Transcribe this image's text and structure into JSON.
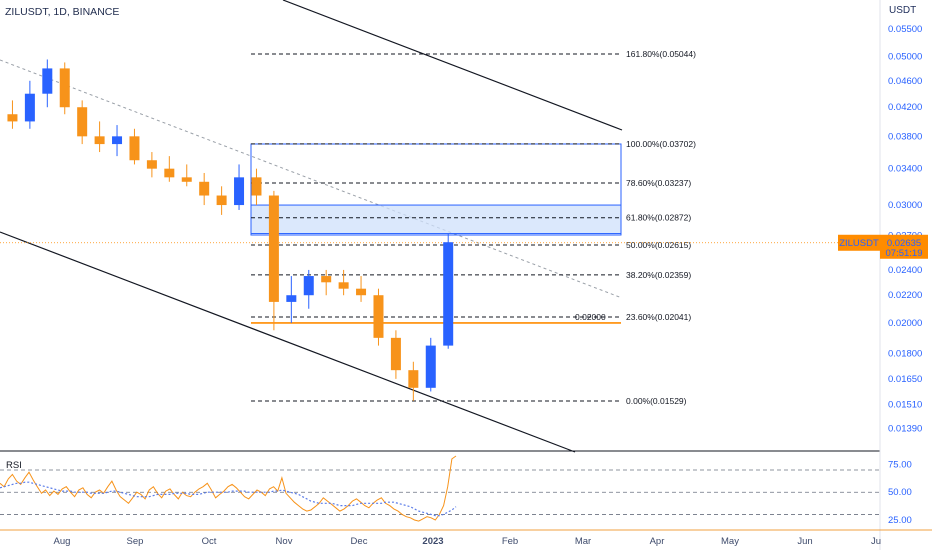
{
  "header": {
    "symbol_title": "ZILUSDT, 1D, BINANCE",
    "currency": "USDT"
  },
  "colors": {
    "up": "#2962ff",
    "down": "#f7931a",
    "level": "#ff8c00",
    "rsi": "#f7931a",
    "rsi_ma": "#5b7ce8",
    "zone": "#cfe0fb"
  },
  "price_label": {
    "symbol": "ZILUSDT",
    "price": "0.02635",
    "countdown": "07:51:19"
  },
  "level_label": "0.02000",
  "rsi_title": "RSI",
  "chart_data": [
    {
      "type": "candlestick",
      "title": "ZILUSDT, 1D, BINANCE",
      "ylabel": "USDT",
      "y_scale": "log",
      "y_ticks": [
        "0.05500",
        "0.05000",
        "0.04600",
        "0.04200",
        "0.03800",
        "0.03400",
        "0.03000",
        "0.02700",
        "0.02400",
        "0.02200",
        "0.02000",
        "0.01800",
        "0.01650",
        "0.01510",
        "0.01390"
      ],
      "x_ticks": [
        "Aug",
        "Sep",
        "Oct",
        "Nov",
        "Dec",
        "2023",
        "Feb",
        "Mar",
        "Apr",
        "May",
        "Jun",
        "Ju"
      ],
      "ohlc": [
        [
          "2022-07-25",
          0.041,
          0.043,
          0.039,
          0.04
        ],
        [
          "2022-08-01",
          0.04,
          0.046,
          0.039,
          0.044
        ],
        [
          "2022-08-08",
          0.044,
          0.0495,
          0.042,
          0.048
        ],
        [
          "2022-08-15",
          0.048,
          0.049,
          0.041,
          0.042
        ],
        [
          "2022-08-22",
          0.042,
          0.043,
          0.037,
          0.038
        ],
        [
          "2022-08-29",
          0.038,
          0.04,
          0.036,
          0.037
        ],
        [
          "2022-09-05",
          0.037,
          0.0395,
          0.0355,
          0.038
        ],
        [
          "2022-09-12",
          0.038,
          0.039,
          0.0345,
          0.035
        ],
        [
          "2022-09-19",
          0.035,
          0.036,
          0.033,
          0.034
        ],
        [
          "2022-09-26",
          0.034,
          0.0355,
          0.0325,
          0.033
        ],
        [
          "2022-10-03",
          0.033,
          0.0345,
          0.032,
          0.0325
        ],
        [
          "2022-10-10",
          0.0325,
          0.0335,
          0.03,
          0.031
        ],
        [
          "2022-10-17",
          0.031,
          0.032,
          0.029,
          0.03
        ],
        [
          "2022-10-24",
          0.03,
          0.0345,
          0.0295,
          0.033
        ],
        [
          "2022-10-31",
          0.033,
          0.034,
          0.03,
          0.031
        ],
        [
          "2022-11-07",
          0.031,
          0.0315,
          0.0195,
          0.0215
        ],
        [
          "2022-11-14",
          0.0215,
          0.0235,
          0.02,
          0.022
        ],
        [
          "2022-11-21",
          0.022,
          0.024,
          0.021,
          0.0235
        ],
        [
          "2022-11-28",
          0.0235,
          0.024,
          0.022,
          0.023
        ],
        [
          "2022-12-05",
          0.023,
          0.024,
          0.022,
          0.0225
        ],
        [
          "2022-12-12",
          0.0225,
          0.0235,
          0.0215,
          0.022
        ],
        [
          "2022-12-19",
          0.022,
          0.0225,
          0.0185,
          0.019
        ],
        [
          "2022-12-26",
          0.019,
          0.0195,
          0.0165,
          0.017
        ],
        [
          "2023-01-02",
          0.017,
          0.0175,
          0.0153,
          0.016
        ],
        [
          "2023-01-09",
          0.016,
          0.019,
          0.0158,
          0.0185
        ],
        [
          "2023-01-16",
          0.0185,
          0.0272,
          0.0183,
          0.0264
        ]
      ],
      "fib_levels": [
        {
          "label": "161.80%(0.05044)",
          "value": 0.05044
        },
        {
          "label": "100.00%(0.03702)",
          "value": 0.03702
        },
        {
          "label": "78.60%(0.03237)",
          "value": 0.03237
        },
        {
          "label": "61.80%(0.02872)",
          "value": 0.02872
        },
        {
          "label": "50.00%(0.02615)",
          "value": 0.02615
        },
        {
          "label": "38.20%(0.02359)",
          "value": 0.02359
        },
        {
          "label": "23.60%(0.02041)",
          "value": 0.02041
        },
        {
          "label": "0.00%(0.01529)",
          "value": 0.01529
        }
      ],
      "horizontal_level": 0.02,
      "zone": [
        0.0272,
        0.03
      ],
      "current_price": 0.02635
    },
    {
      "type": "line",
      "title": "RSI",
      "y_ticks": [
        "75.00",
        "50.00",
        "25.00"
      ],
      "bands": [
        70,
        50,
        30
      ],
      "series": [
        {
          "values": [
            58,
            55,
            62,
            66,
            60,
            57,
            63,
            68,
            61,
            55,
            49,
            52,
            47,
            51,
            48,
            53,
            55,
            50,
            46,
            52,
            54,
            48,
            45,
            50,
            52,
            49,
            55,
            60,
            52,
            46,
            43,
            40,
            45,
            50,
            48,
            44,
            52,
            55,
            49,
            45,
            51,
            53,
            48,
            44,
            50,
            47,
            46,
            50,
            53,
            55,
            58,
            52,
            45,
            48,
            51,
            55,
            57,
            54,
            50,
            46,
            44,
            48,
            52,
            50,
            47,
            53,
            55,
            51,
            63,
            49,
            45,
            41,
            38,
            35,
            33,
            34,
            37,
            40,
            45,
            42,
            39,
            36,
            33,
            35,
            38,
            42,
            44,
            41,
            38,
            36,
            40,
            43,
            45,
            40,
            38,
            35,
            33,
            30,
            28,
            27,
            25,
            24,
            26,
            28,
            27,
            25,
            30,
            38,
            55,
            80,
            86
          ]
        },
        {
          "values": [
            54,
            55,
            56,
            57,
            58,
            58,
            59,
            59,
            58,
            57,
            56,
            55,
            54,
            53,
            52,
            51,
            51,
            51,
            50,
            50,
            50,
            50,
            49,
            49,
            49,
            49,
            50,
            51,
            51,
            50,
            49,
            48,
            47,
            46,
            46,
            46,
            46,
            47,
            48,
            48,
            48,
            48,
            49,
            49,
            49,
            49,
            48,
            48,
            48,
            49,
            50,
            50,
            50,
            50,
            50,
            50,
            51,
            51,
            51,
            51,
            50,
            50,
            50,
            50,
            50,
            50,
            51,
            51,
            52,
            51,
            50,
            49,
            48,
            46,
            44,
            42,
            41,
            40,
            40,
            40,
            40,
            39,
            38,
            38,
            38,
            38,
            39,
            40,
            40,
            40,
            40,
            40,
            40,
            41,
            41,
            41,
            40,
            39,
            38,
            37,
            35,
            33,
            32,
            31,
            30,
            29,
            29,
            30,
            32,
            34,
            37
          ]
        }
      ]
    }
  ]
}
